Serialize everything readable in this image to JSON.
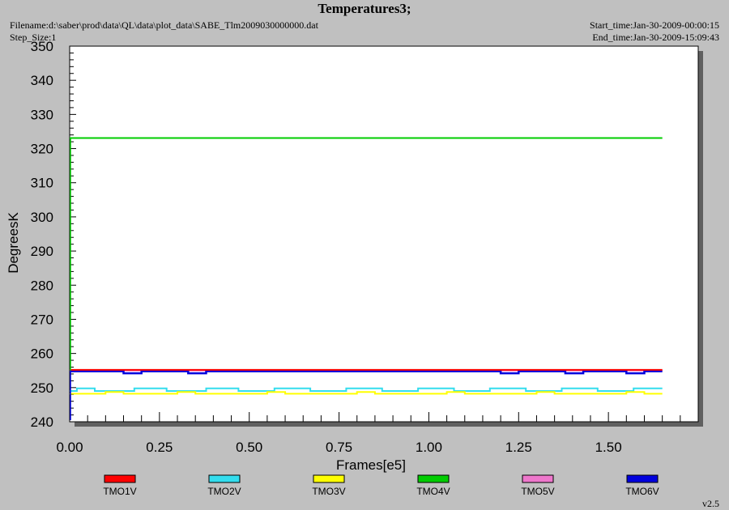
{
  "header": {
    "title": "Temperatures3;",
    "filename": "Filename:d:\\saber\\prod\\data\\QL\\data\\plot_data\\SABE_Tlm2009030000000.dat",
    "step_size": "Step_Size:1",
    "start_time": "Start_time:Jan-30-2009-00:00:15",
    "end_time": "End_time:Jan-30-2009-15:09:43"
  },
  "footer": {
    "version": "v2.5"
  },
  "colors": {
    "TMO1V": "#ff0000",
    "TMO2V": "#33ddee",
    "TMO3V": "#ffff00",
    "TMO4V": "#00cc00",
    "TMO5V": "#ee77cc",
    "TMO6V": "#0000dd"
  },
  "chart_data": {
    "type": "line",
    "title": "Temperatures3;",
    "xlabel": "Frames[e5]",
    "ylabel": "DegreesK",
    "xlim": [
      0.0,
      1.75
    ],
    "ylim": [
      240,
      350
    ],
    "xticks": [
      "0.00",
      "0.25",
      "0.50",
      "0.75",
      "1.00",
      "1.25",
      "1.50"
    ],
    "yticks": [
      "240",
      "250",
      "260",
      "270",
      "280",
      "290",
      "300",
      "310",
      "320",
      "330",
      "340",
      "350"
    ],
    "legend_position": "bottom",
    "grid": false,
    "series": [
      {
        "name": "TMO1V",
        "color": "#ff0000",
        "x": [
          0.0,
          1.65
        ],
        "y": [
          255.2,
          255.2
        ]
      },
      {
        "name": "TMO2V",
        "color": "#33ddee",
        "x": [
          0.0,
          0.02,
          0.02,
          0.07,
          0.07,
          0.18,
          0.18,
          0.27,
          0.27,
          0.38,
          0.38,
          0.47,
          0.47,
          0.57,
          0.57,
          0.67,
          0.67,
          0.77,
          0.77,
          0.87,
          0.87,
          0.97,
          0.97,
          1.07,
          1.07,
          1.17,
          1.17,
          1.27,
          1.27,
          1.37,
          1.37,
          1.47,
          1.47,
          1.57,
          1.57,
          1.65
        ],
        "y": [
          249.0,
          249.0,
          249.8,
          249.8,
          249.0,
          249.0,
          249.8,
          249.8,
          249.0,
          249.0,
          249.8,
          249.8,
          249.0,
          249.0,
          249.8,
          249.8,
          249.0,
          249.0,
          249.8,
          249.8,
          249.0,
          249.0,
          249.8,
          249.8,
          249.0,
          249.0,
          249.8,
          249.8,
          249.0,
          249.0,
          249.8,
          249.8,
          249.0,
          249.0,
          249.8,
          249.8
        ]
      },
      {
        "name": "TMO3V",
        "color": "#ffff00",
        "x": [
          0.0,
          0.1,
          0.1,
          0.15,
          0.15,
          0.3,
          0.3,
          0.35,
          0.35,
          0.55,
          0.55,
          0.6,
          0.6,
          0.8,
          0.8,
          0.85,
          0.85,
          1.05,
          1.05,
          1.1,
          1.1,
          1.3,
          1.3,
          1.35,
          1.35,
          1.55,
          1.55,
          1.6,
          1.6,
          1.65
        ],
        "y": [
          248.2,
          248.2,
          248.7,
          248.7,
          248.2,
          248.2,
          248.7,
          248.7,
          248.2,
          248.2,
          248.7,
          248.7,
          248.2,
          248.2,
          248.7,
          248.7,
          248.2,
          248.2,
          248.7,
          248.7,
          248.2,
          248.2,
          248.7,
          248.7,
          248.2,
          248.2,
          248.7,
          248.7,
          248.2,
          248.2
        ]
      },
      {
        "name": "TMO4V",
        "color": "#00cc00",
        "x": [
          0.0,
          1.65
        ],
        "y": [
          323.1,
          323.1
        ]
      },
      {
        "name": "TMO5V",
        "color": "#ee77cc",
        "x": [
          0.0,
          1.65
        ],
        "y": [
          255.0,
          255.0
        ]
      },
      {
        "name": "TMO6V",
        "color": "#0000dd",
        "x": [
          0.0,
          0.15,
          0.15,
          0.2,
          0.2,
          0.33,
          0.33,
          0.38,
          0.38,
          1.2,
          1.2,
          1.25,
          1.25,
          1.38,
          1.38,
          1.43,
          1.43,
          1.55,
          1.55,
          1.6,
          1.6,
          1.65
        ],
        "y": [
          254.8,
          254.8,
          254.2,
          254.2,
          254.8,
          254.8,
          254.2,
          254.2,
          254.8,
          254.8,
          254.2,
          254.2,
          254.8,
          254.8,
          254.2,
          254.2,
          254.8,
          254.8,
          254.2,
          254.2,
          254.8,
          254.8
        ]
      }
    ]
  }
}
